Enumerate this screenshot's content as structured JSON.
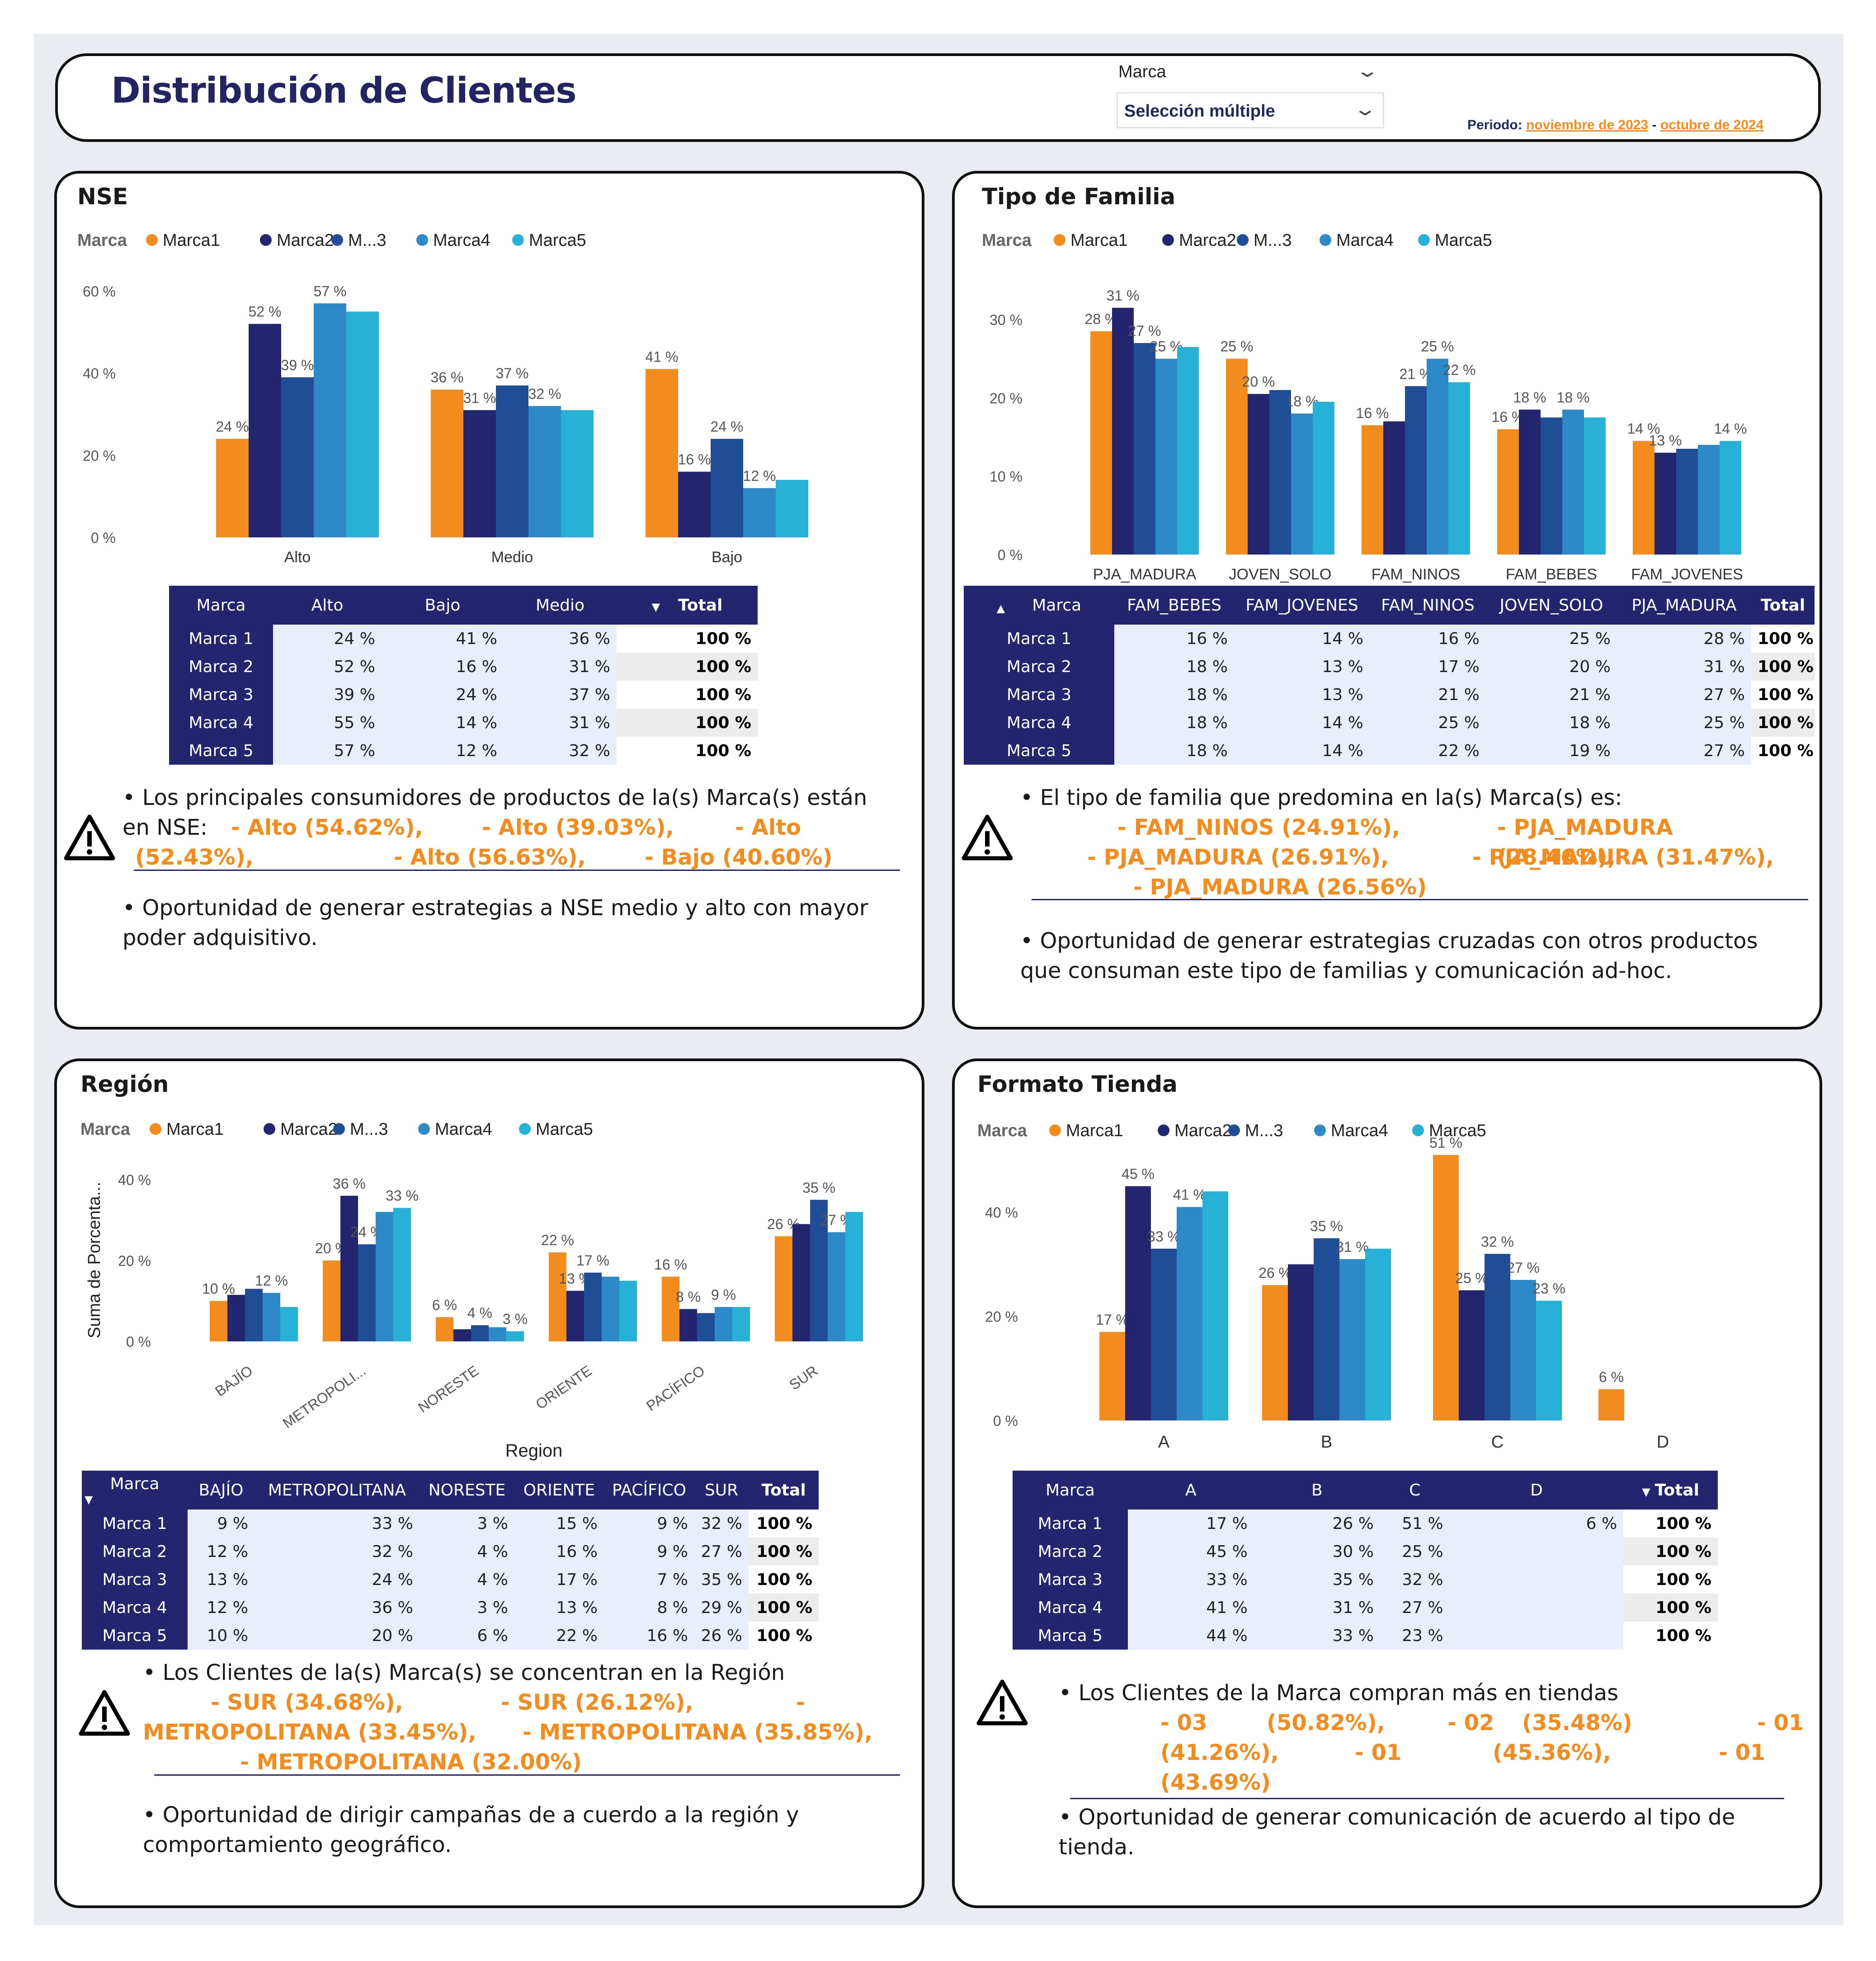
{
  "header": {
    "title": "Distribución de Clientes",
    "slicer_label": "Marca",
    "slicer_value": "Selección múltiple",
    "period_label": "Periodo:",
    "period_start": "noviembre de 2023",
    "period_sep": "-",
    "period_end": "octubre de 2024"
  },
  "colors": {
    "Marca1": "#f28c1f",
    "Marca2": "#23266e",
    "Marca3": "#1f4e97",
    "Marca4": "#2e89c8",
    "Marca5": "#28b1d6",
    "header_bg": "#23266e",
    "accent": "#f28c1f"
  },
  "legend_title": "Marca",
  "nse": {
    "title": "NSE",
    "legend": [
      "Marca1",
      "Marca2",
      "M...3",
      "Marca4",
      "Marca5"
    ],
    "table": {
      "headers": [
        "Marca",
        "Alto",
        "Bajo",
        "Medio",
        "Total"
      ],
      "rows": [
        [
          "Marca 1",
          "24 %",
          "41 %",
          "36 %",
          "100 %"
        ],
        [
          "Marca 2",
          "52 %",
          "16 %",
          "31 %",
          "100 %"
        ],
        [
          "Marca 3",
          "39 %",
          "24 %",
          "37 %",
          "100 %"
        ],
        [
          "Marca 4",
          "55 %",
          "14 %",
          "31 %",
          "100 %"
        ],
        [
          "Marca 5",
          "57 %",
          "12 %",
          "32 %",
          "100 %"
        ]
      ]
    },
    "insight1_lead": "Los principales consumidores de productos de la(s) Marca(s) están en NSE:",
    "insight1_values": [
      "- Alto (54.62%),",
      "- Alto (39.03%),",
      "- Alto",
      "(52.43%),",
      "- Alto (56.63%),",
      "- Bajo (40.60%)"
    ],
    "insight2": "Oportunidad de generar estrategias a NSE medio y alto con mayor poder adquisitivo."
  },
  "familia": {
    "title": "Tipo de Familia",
    "legend": [
      "Marca1",
      "Marca2",
      "M...3",
      "Marca4",
      "Marca5"
    ],
    "table": {
      "headers": [
        "Marca",
        "FAM_BEBES",
        "FAM_JOVENES",
        "FAM_NINOS",
        "JOVEN_SOLO",
        "PJA_MADURA",
        "Total"
      ],
      "rows": [
        [
          "Marca 1",
          "16 %",
          "14 %",
          "16 %",
          "25 %",
          "28 %",
          "100 %"
        ],
        [
          "Marca 2",
          "18 %",
          "13 %",
          "17 %",
          "20 %",
          "31 %",
          "100 %"
        ],
        [
          "Marca 3",
          "18 %",
          "13 %",
          "21 %",
          "21 %",
          "27 %",
          "100 %"
        ],
        [
          "Marca 4",
          "18 %",
          "14 %",
          "25 %",
          "18 %",
          "25 %",
          "100 %"
        ],
        [
          "Marca 5",
          "18 %",
          "14 %",
          "22 %",
          "19 %",
          "27 %",
          "100 %"
        ]
      ]
    },
    "insight1_lead": "El tipo de familia que predomina en la(s) Marca(s) es:",
    "insight1_values": [
      "- FAM_NINOS (24.91%),",
      "- PJA_MADURA (28.46%),",
      "- PJA_MADURA (26.91%),",
      "- PJA_MADURA (31.47%),",
      "- PJA_MADURA (26.56%)"
    ],
    "insight2": "Oportunidad de generar estrategias cruzadas con otros productos que consuman este tipo de familias y comunicación ad-hoc."
  },
  "region": {
    "title": "Región",
    "legend": [
      "Marca1",
      "Marca2",
      "M...3",
      "Marca4",
      "Marca5"
    ],
    "table": {
      "headers": [
        "Marca",
        "BAJÍO",
        "METROPOLITANA",
        "NORESTE",
        "ORIENTE",
        "PACÍFICO",
        "SUR",
        "Total"
      ],
      "rows": [
        [
          "Marca 1",
          "9 %",
          "33 %",
          "3 %",
          "15 %",
          "9 %",
          "32 %",
          "100 %"
        ],
        [
          "Marca 2",
          "12 %",
          "32 %",
          "4 %",
          "16 %",
          "9 %",
          "27 %",
          "100 %"
        ],
        [
          "Marca 3",
          "13 %",
          "24 %",
          "4 %",
          "17 %",
          "7 %",
          "35 %",
          "100 %"
        ],
        [
          "Marca 4",
          "12 %",
          "36 %",
          "3 %",
          "13 %",
          "8 %",
          "29 %",
          "100 %"
        ],
        [
          "Marca 5",
          "10 %",
          "20 %",
          "6 %",
          "22 %",
          "16 %",
          "26 %",
          "100 %"
        ]
      ]
    },
    "insight1_lead": "Los Clientes de la(s) Marca(s) se concentran en la Región",
    "insight1_values": [
      "- SUR (34.68%),",
      "- SUR (26.12%),",
      "-",
      "METROPOLITANA (33.45%),",
      "- METROPOLITANA (35.85%),",
      "- METROPOLITANA (32.00%)"
    ],
    "insight2": "Oportunidad de dirigir campañas de a cuerdo a la región y comportamiento geográfico."
  },
  "formato": {
    "title": "Formato Tienda",
    "legend": [
      "Marca1",
      "Marca2",
      "M...3",
      "Marca4",
      "Marca5"
    ],
    "table": {
      "headers": [
        "Marca",
        "A",
        "B",
        "C",
        "D",
        "Total"
      ],
      "rows": [
        [
          "Marca 1",
          "17 %",
          "26 %",
          "51 %",
          "6 %",
          "100 %"
        ],
        [
          "Marca 2",
          "45 %",
          "30 %",
          "25 %",
          "",
          "100 %"
        ],
        [
          "Marca 3",
          "33 %",
          "35 %",
          "32 %",
          "",
          "100 %"
        ],
        [
          "Marca 4",
          "41 %",
          "31 %",
          "27 %",
          "",
          "100 %"
        ],
        [
          "Marca 5",
          "44 %",
          "33 %",
          "23 %",
          "",
          "100 %"
        ]
      ]
    },
    "insight1_lead": "Los Clientes de la Marca compran más en tiendas",
    "insight1_values": [
      "- 03",
      "(50.82%),",
      "- 02",
      "(35.48%)",
      "- 01",
      "(41.26%),",
      "- 01",
      "(45.36%),",
      "- 01",
      "(43.69%)"
    ],
    "insight2": "Oportunidad de generar comunicación de acuerdo al tipo de tienda."
  },
  "chart_data": [
    {
      "type": "bar",
      "title": "NSE",
      "legend_title": "Marca",
      "categories": [
        "Alto",
        "Medio",
        "Bajo"
      ],
      "ylim": [
        0,
        60
      ],
      "yticks": [
        "0 %",
        "20 %",
        "40 %",
        "60 %"
      ],
      "series": [
        {
          "name": "Marca1",
          "values": [
            24,
            36,
            41
          ],
          "labels": [
            "24 %",
            "36 %",
            "41 %"
          ]
        },
        {
          "name": "Marca2",
          "values": [
            52,
            31,
            16
          ],
          "labels": [
            "52 %",
            "31 %",
            "16 %"
          ]
        },
        {
          "name": "M...3",
          "values": [
            39,
            37,
            24
          ],
          "labels": [
            "39 %",
            "37 %",
            "24 %"
          ]
        },
        {
          "name": "Marca4",
          "values": [
            57,
            32,
            12
          ],
          "labels": [
            "57 %",
            "32 %",
            "12 %"
          ]
        },
        {
          "name": "Marca5",
          "values": [
            55,
            31,
            14
          ],
          "labels": [
            "",
            "",
            ""
          ]
        }
      ]
    },
    {
      "type": "bar",
      "title": "Tipo de Familia",
      "legend_title": "Marca",
      "categories": [
        "PJA_MADURA",
        "JOVEN_SOLO",
        "FAM_NINOS",
        "FAM_BEBES",
        "FAM_JOVENES"
      ],
      "ylim": [
        0,
        30
      ],
      "yticks": [
        "0 %",
        "10 %",
        "20 %",
        "30 %"
      ],
      "series": [
        {
          "name": "Marca1",
          "values": [
            28.5,
            25,
            16.5,
            16,
            14.5
          ],
          "labels": [
            "28 %",
            "25 %",
            "16 %",
            "16 %",
            "14 %"
          ]
        },
        {
          "name": "Marca2",
          "values": [
            31.5,
            20.5,
            17,
            18.5,
            13
          ],
          "labels": [
            "31 %",
            "20 %",
            "",
            "18 %",
            "13 %"
          ]
        },
        {
          "name": "M...3",
          "values": [
            27,
            21,
            21.5,
            17.5,
            13.5
          ],
          "labels": [
            "27 %",
            "",
            "21 %",
            "",
            ""
          ]
        },
        {
          "name": "Marca4",
          "values": [
            25,
            18,
            25,
            18.5,
            14
          ],
          "labels": [
            "25 %",
            "18 %",
            "25 %",
            "18 %",
            ""
          ]
        },
        {
          "name": "Marca5",
          "values": [
            26.5,
            19.5,
            22,
            17.5,
            14.5
          ],
          "labels": [
            "",
            "",
            "22 %",
            "",
            "14 %"
          ]
        }
      ]
    },
    {
      "type": "bar",
      "title": "Región",
      "legend_title": "Marca",
      "xlabel": "Region",
      "ylabel": "Suma de Porcenta...",
      "categories": [
        "BAJÍO",
        "METROPOLI...",
        "NORESTE",
        "ORIENTE",
        "PACÍFICO",
        "SUR"
      ],
      "ylim": [
        0,
        40
      ],
      "yticks": [
        "0 %",
        "20 %",
        "40 %"
      ],
      "series": [
        {
          "name": "Marca1",
          "values": [
            10,
            20,
            6,
            22,
            16,
            26
          ],
          "labels": [
            "10 %",
            "20 %",
            "6 %",
            "22 %",
            "16 %",
            "26 %"
          ]
        },
        {
          "name": "Marca2",
          "values": [
            11.5,
            36,
            3,
            12.5,
            8,
            29
          ],
          "labels": [
            "",
            "36 %",
            "",
            "13 %",
            "8 %",
            ""
          ]
        },
        {
          "name": "M...3",
          "values": [
            13,
            24,
            4,
            17,
            7,
            35
          ],
          "labels": [
            "",
            "24 %",
            "4 %",
            "17 %",
            "",
            "35 %"
          ]
        },
        {
          "name": "Marca4",
          "values": [
            12,
            32,
            3.5,
            16,
            8.5,
            27
          ],
          "labels": [
            "12 %",
            "",
            "",
            "",
            "9 %",
            "27 %"
          ]
        },
        {
          "name": "Marca5",
          "values": [
            8.5,
            33,
            2.5,
            15,
            8.5,
            32
          ],
          "labels": [
            "",
            "33 %",
            "3 %",
            "",
            "",
            ""
          ]
        }
      ]
    },
    {
      "type": "bar",
      "title": "Formato Tienda",
      "legend_title": "Marca",
      "categories": [
        "A",
        "B",
        "C",
        "D"
      ],
      "ylim": [
        0,
        50
      ],
      "yticks": [
        "0 %",
        "20 %",
        "40 %"
      ],
      "series": [
        {
          "name": "Marca1",
          "values": [
            17,
            26,
            51,
            6
          ],
          "labels": [
            "17 %",
            "26 %",
            "51 %",
            "6 %"
          ]
        },
        {
          "name": "Marca2",
          "values": [
            45,
            30,
            25,
            0
          ],
          "labels": [
            "45 %",
            "",
            "25 %",
            ""
          ]
        },
        {
          "name": "M...3",
          "values": [
            33,
            35,
            32,
            0
          ],
          "labels": [
            "33 %",
            "35 %",
            "32 %",
            ""
          ]
        },
        {
          "name": "Marca4",
          "values": [
            41,
            31,
            27,
            0
          ],
          "labels": [
            "41 %",
            "31 %",
            "27 %",
            ""
          ]
        },
        {
          "name": "Marca5",
          "values": [
            44,
            33,
            23,
            0
          ],
          "labels": [
            "",
            "",
            "23 %",
            ""
          ]
        }
      ]
    }
  ]
}
